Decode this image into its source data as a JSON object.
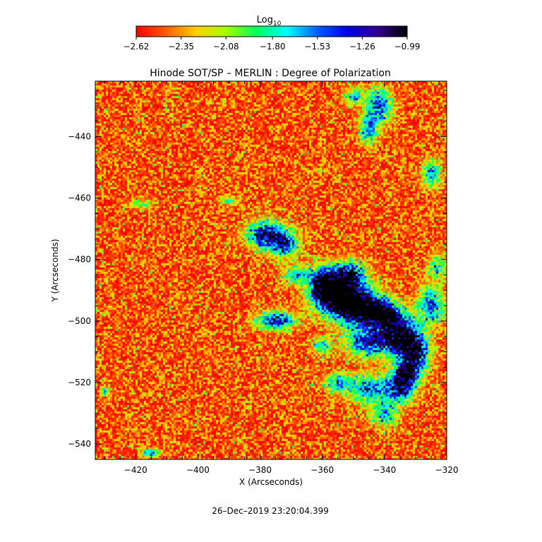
{
  "chart_data": {
    "type": "heatmap",
    "title": "Hinode SOT/SP – MERLIN : Degree of Polarization",
    "xlabel": "X (Arcseconds)",
    "ylabel": "Y (Arcseconds)",
    "xlim": [
      -433,
      -320
    ],
    "ylim": [
      -545,
      -422
    ],
    "x_ticks": [
      -420,
      -400,
      -380,
      -360,
      -340,
      -320
    ],
    "x_tick_labels": [
      "−420",
      "−400",
      "−380",
      "−360",
      "−340",
      "−320"
    ],
    "y_ticks": [
      -440,
      -460,
      -480,
      -500,
      -520,
      -540
    ],
    "y_tick_labels": [
      "−440",
      "−460",
      "−480",
      "−500",
      "−520",
      "−540"
    ],
    "colorbar": {
      "label": "Log",
      "label_subscript": "10",
      "range": [
        -2.62,
        -0.99
      ],
      "ticks": [
        -2.62,
        -2.35,
        -2.08,
        -1.8,
        -1.53,
        -1.26,
        -0.99
      ],
      "tick_labels": [
        "−2.62",
        "−2.35",
        "−2.08",
        "−1.80",
        "−1.53",
        "−1.26",
        "−0.99"
      ],
      "colormap_stops": [
        "#ff0000",
        "#ff6000",
        "#ffd000",
        "#a0ff00",
        "#00ff60",
        "#00ffff",
        "#0060ff",
        "#0000e0",
        "#300090",
        "#000000"
      ]
    },
    "features": [
      {
        "x": -355,
        "y": -492,
        "sx": 5,
        "sy": 4,
        "amp": 1.4
      },
      {
        "x": -348,
        "y": -496,
        "sx": 5,
        "sy": 4,
        "amp": 1.3
      },
      {
        "x": -340,
        "y": -498,
        "sx": 4,
        "sy": 3,
        "amp": 1.2
      },
      {
        "x": -352,
        "y": -485,
        "sx": 4,
        "sy": 3,
        "amp": 1.0
      },
      {
        "x": -335,
        "y": -505,
        "sx": 4,
        "sy": 4,
        "amp": 1.2
      },
      {
        "x": -330,
        "y": -510,
        "sx": 3,
        "sy": 4,
        "amp": 1.1
      },
      {
        "x": -333,
        "y": -517,
        "sx": 3,
        "sy": 3,
        "amp": 1.0
      },
      {
        "x": -335,
        "y": -522,
        "sx": 3,
        "sy": 3,
        "amp": 0.9
      },
      {
        "x": -345,
        "y": -507,
        "sx": 5,
        "sy": 3,
        "amp": 0.9
      },
      {
        "x": -360,
        "y": -488,
        "sx": 3,
        "sy": 4,
        "amp": 0.9
      },
      {
        "x": -378,
        "y": -472,
        "sx": 4,
        "sy": 3,
        "amp": 1.1
      },
      {
        "x": -372,
        "y": -475,
        "sx": 3,
        "sy": 3,
        "amp": 0.8
      },
      {
        "x": -375,
        "y": -500,
        "sx": 4,
        "sy": 2,
        "amp": 1.0
      },
      {
        "x": -345,
        "y": -522,
        "sx": 5,
        "sy": 3,
        "amp": 0.7
      },
      {
        "x": -340,
        "y": -530,
        "sx": 3,
        "sy": 3,
        "amp": 0.6
      },
      {
        "x": -355,
        "y": -520,
        "sx": 3,
        "sy": 2,
        "amp": 0.6
      },
      {
        "x": -342,
        "y": -430,
        "sx": 3,
        "sy": 4,
        "amp": 0.8
      },
      {
        "x": -345,
        "y": -438,
        "sx": 2,
        "sy": 3,
        "amp": 0.7
      },
      {
        "x": -350,
        "y": -427,
        "sx": 2,
        "sy": 2,
        "amp": 0.6
      },
      {
        "x": -325,
        "y": -452,
        "sx": 2,
        "sy": 3,
        "amp": 0.7
      },
      {
        "x": -325,
        "y": -495,
        "sx": 3,
        "sy": 4,
        "amp": 0.8
      },
      {
        "x": -323,
        "y": -482,
        "sx": 2,
        "sy": 3,
        "amp": 0.5
      },
      {
        "x": -368,
        "y": -485,
        "sx": 3,
        "sy": 2,
        "amp": 0.6
      },
      {
        "x": -360,
        "y": -508,
        "sx": 2,
        "sy": 2,
        "amp": 0.6
      },
      {
        "x": -415,
        "y": -543,
        "sx": 2,
        "sy": 1,
        "amp": 0.7
      },
      {
        "x": -430,
        "y": -523,
        "sx": 1,
        "sy": 1,
        "amp": 0.6
      },
      {
        "x": -390,
        "y": -461,
        "sx": 2,
        "sy": 1,
        "amp": 0.45
      },
      {
        "x": -418,
        "y": -462,
        "sx": 3,
        "sy": 1,
        "amp": 0.4
      }
    ],
    "noise_seed": 20191226
  },
  "footer": {
    "timestamp": "26–Dec–2019 23:20:04.399"
  }
}
